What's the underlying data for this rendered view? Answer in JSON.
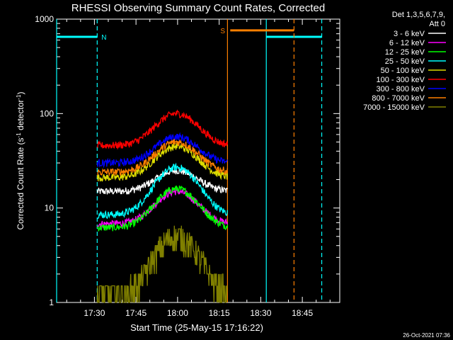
{
  "chart_data": {
    "type": "line",
    "title": "RHESSI Observing Summary Count Rates, Corrected",
    "xlabel": "Start Time (25-May-15 17:16:22)",
    "ylabel_parts": [
      "Corrected Count Rate (s",
      "-1",
      " detector",
      "-1",
      ")"
    ],
    "yscale": "log",
    "ylim": [
      1,
      1000
    ],
    "xlim": [
      "17:16:22",
      "18:58:30"
    ],
    "y_ticks": [
      {
        "value": 1,
        "label": "1"
      },
      {
        "value": 10,
        "label": "10"
      },
      {
        "value": 100,
        "label": "100"
      },
      {
        "value": 1000,
        "label": "1000"
      }
    ],
    "x_ticks": [
      "17:30",
      "17:45",
      "18:00",
      "18:15",
      "18:30",
      "18:45"
    ],
    "legend_header": [
      "Det 1,3,5,6,7,9,",
      "Att 0"
    ],
    "data_start": "17:31:00",
    "data_end": "18:18:00",
    "peak_time": "17:59:40",
    "series": [
      {
        "name": "3 - 6 keV",
        "color": "#ffffff",
        "base": 15,
        "peak": 25
      },
      {
        "name": "6 - 12 keV",
        "color": "#ff00ff",
        "base": 6.8,
        "peak": 15
      },
      {
        "name": "12 - 25 keV",
        "color": "#00ff00",
        "base": 6.2,
        "peak": 16
      },
      {
        "name": "25 - 50 keV",
        "color": "#00ffff",
        "base": 8.5,
        "peak": 27
      },
      {
        "name": "50 - 100 keV",
        "color": "#dcdc00",
        "base": 21,
        "peak": 45
      },
      {
        "name": "100 - 300 keV",
        "color": "#ff0000",
        "base": 46,
        "peak": 100
      },
      {
        "name": "300 - 800 keV",
        "color": "#0000ff",
        "base": 30,
        "peak": 57
      },
      {
        "name": "800 - 7000 keV",
        "color": "#ff7f00",
        "base": 24,
        "peak": 50
      },
      {
        "name": "7000 - 15000 keV",
        "color": "#808000",
        "base": 1.2,
        "peak": 5
      }
    ],
    "annotations": [
      {
        "label": "N",
        "color": "#00ffff",
        "time": "17:31:00",
        "bar": {
          "from": "17:16:22",
          "to": "17:31:00",
          "y": 650
        },
        "marks": [
          {
            "time": "17:16:22",
            "style": "solid"
          },
          {
            "time": "17:31:00",
            "style": "dashed"
          }
        ]
      },
      {
        "label": "",
        "color": "#00ffff",
        "bar": {
          "from": "18:32:00",
          "to": "18:52:00",
          "y": 650
        },
        "marks": [
          {
            "time": "18:32:00",
            "style": "solid"
          },
          {
            "time": "18:52:00",
            "style": "dashed"
          }
        ]
      },
      {
        "label": "S",
        "color": "#ff7f00",
        "time": "18:18:00",
        "bar": {
          "from": "18:19:00",
          "to": "18:42:00",
          "y": 760
        },
        "marks": [
          {
            "time": "18:18:00",
            "style": "solid"
          },
          {
            "time": "18:42:00",
            "style": "dashed"
          }
        ]
      }
    ],
    "footer_timestamp": "26-Oct-2021 07:36"
  }
}
